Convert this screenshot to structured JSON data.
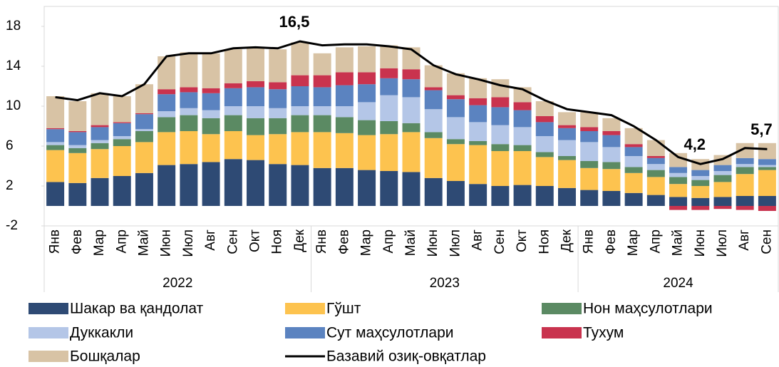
{
  "chart_data": {
    "type": "stacked_bar_line",
    "categories": [
      "Янв",
      "Фев",
      "Мар",
      "Апр",
      "Май",
      "Июн",
      "Июл",
      "Авг",
      "Сен",
      "Окт",
      "Ноя",
      "Дек",
      "Янв",
      "Фев",
      "Мар",
      "Апр",
      "Май",
      "Июн",
      "Июл",
      "Авг",
      "Сен",
      "Окт",
      "Ноя",
      "Дек",
      "Янв",
      "Фев",
      "Мар",
      "Апр",
      "Май",
      "Июн",
      "Июл",
      "Авг",
      "Сен"
    ],
    "year_groups": [
      {
        "name": "2022",
        "count": 12
      },
      {
        "name": "2023",
        "count": 12
      },
      {
        "name": "2024",
        "count": 9
      }
    ],
    "ylim": [
      -2,
      20
    ],
    "yticks": [
      -2,
      2,
      6,
      10,
      14,
      18
    ],
    "series": [
      {
        "name": "Шакар ва қандолат",
        "color": "#2e4a74",
        "values": [
          2.4,
          2.3,
          2.8,
          3.0,
          3.3,
          4.1,
          4.2,
          4.4,
          4.7,
          4.6,
          4.2,
          4.1,
          3.8,
          3.8,
          3.6,
          3.5,
          3.4,
          2.8,
          2.5,
          2.2,
          2.0,
          2.1,
          2.0,
          1.8,
          1.6,
          1.5,
          1.3,
          1.1,
          0.9,
          0.8,
          0.9,
          1.0,
          1.0
        ]
      },
      {
        "name": "Гўшт",
        "color": "#fdc34f",
        "values": [
          3.2,
          3.0,
          2.9,
          3.0,
          3.1,
          3.3,
          3.3,
          2.8,
          2.8,
          2.5,
          3.0,
          3.3,
          3.6,
          3.5,
          3.5,
          3.7,
          4.0,
          4.0,
          3.7,
          3.9,
          3.5,
          3.4,
          2.9,
          2.8,
          2.2,
          2.2,
          2.0,
          1.8,
          1.3,
          1.2,
          1.5,
          2.2,
          2.6
        ]
      },
      {
        "name": "Нон маҳсулотлари",
        "color": "#5b8a63",
        "values": [
          0.5,
          0.5,
          0.6,
          0.7,
          1.1,
          1.5,
          1.6,
          1.6,
          1.6,
          1.7,
          1.6,
          1.7,
          1.7,
          1.6,
          1.5,
          1.3,
          0.9,
          0.6,
          0.5,
          0.4,
          0.7,
          0.6,
          0.5,
          0.4,
          0.7,
          0.7,
          0.6,
          0.7,
          0.7,
          0.6,
          0.7,
          0.7,
          0.3
        ]
      },
      {
        "name": "Дуккакли",
        "color": "#b4c6e7",
        "values": [
          0.3,
          0.3,
          0.3,
          0.3,
          0.2,
          0.6,
          0.7,
          0.8,
          0.9,
          1.2,
          1.0,
          0.9,
          0.9,
          1.1,
          1.8,
          2.6,
          2.6,
          2.3,
          2.2,
          1.9,
          1.9,
          1.8,
          1.6,
          1.6,
          1.9,
          1.5,
          1.1,
          0.6,
          0.4,
          0.4,
          0.4,
          0.3,
          0.2
        ]
      },
      {
        "name": "Сут маҳсулотлари",
        "color": "#5b83c0",
        "values": [
          1.3,
          1.3,
          1.3,
          1.3,
          1.5,
          1.7,
          1.6,
          1.7,
          1.8,
          1.9,
          1.9,
          2.0,
          1.9,
          2.1,
          1.8,
          1.7,
          1.8,
          1.9,
          1.8,
          1.7,
          1.8,
          1.7,
          1.4,
          1.2,
          1.1,
          1.2,
          0.9,
          0.6,
          0.6,
          0.6,
          0.6,
          0.6,
          0.6
        ]
      },
      {
        "name": "Тухум",
        "color": "#c9334e",
        "values": [
          0.1,
          0.1,
          0.2,
          0.1,
          0.1,
          0.5,
          0.5,
          0.5,
          0.5,
          0.6,
          0.7,
          1.1,
          1.2,
          1.3,
          1.2,
          1.0,
          1.0,
          0.3,
          0.4,
          0.7,
          1.0,
          0.8,
          0.6,
          0.3,
          0.4,
          0.4,
          0.3,
          0.2,
          -0.4,
          -0.4,
          -0.3,
          -0.4,
          -0.5
        ]
      },
      {
        "name": "Бошқалар",
        "color": "#d8c3a5",
        "values": [
          3.2,
          3.0,
          3.2,
          2.6,
          2.9,
          3.3,
          3.5,
          3.5,
          3.4,
          3.3,
          3.3,
          3.3,
          2.2,
          2.5,
          2.6,
          2.3,
          2.2,
          2.2,
          2.2,
          2.0,
          1.8,
          1.5,
          1.5,
          1.3,
          1.5,
          1.3,
          1.6,
          1.6,
          1.4,
          1.1,
          1.0,
          1.5,
          1.6
        ]
      }
    ],
    "line": {
      "name": "Базавий озиқ-овқатлар",
      "color": "#000000",
      "values": [
        10.9,
        10.6,
        11.3,
        11.0,
        12.2,
        15.0,
        15.3,
        15.3,
        15.8,
        15.9,
        15.8,
        16.5,
        16.1,
        16.2,
        16.2,
        16.0,
        15.7,
        14.1,
        13.2,
        12.7,
        12.1,
        11.7,
        10.6,
        9.7,
        9.4,
        9.1,
        8.0,
        6.6,
        4.9,
        4.2,
        4.7,
        5.8,
        5.7
      ],
      "value_labels": [
        null,
        null,
        null,
        null,
        null,
        null,
        null,
        null,
        null,
        null,
        null,
        "16,5",
        null,
        null,
        null,
        null,
        null,
        null,
        null,
        null,
        null,
        null,
        null,
        null,
        null,
        null,
        null,
        null,
        null,
        "4,2",
        null,
        null,
        "5,7"
      ]
    }
  }
}
